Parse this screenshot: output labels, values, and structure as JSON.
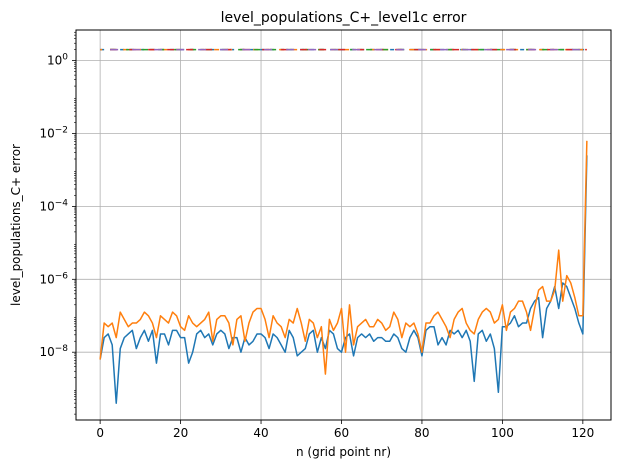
{
  "chart_data": {
    "type": "line",
    "title": "level_populations_C+_level1c error",
    "xlabel": "n (grid point nr)",
    "ylabel": "level_populations_C+ error",
    "xlim": [
      -6,
      127
    ],
    "ylim_log10": [
      -9.86,
      0.84
    ],
    "yscale": "log",
    "grid": true,
    "x_ticks": [
      0,
      20,
      40,
      60,
      80,
      100,
      120
    ],
    "y_ticks": [
      {
        "exp": -8,
        "label": "10−8"
      },
      {
        "exp": -6,
        "label": "10−6"
      },
      {
        "exp": -4,
        "label": "10−4"
      },
      {
        "exp": -2,
        "label": "10−2"
      },
      {
        "exp": 0,
        "label": "100"
      }
    ],
    "reference_level": 2.0,
    "reference_colors": [
      "#1f77b4",
      "#ff7f0e",
      "#2ca02c",
      "#d62728",
      "#9467bd"
    ],
    "series": [
      {
        "color": "#1f77b4",
        "values_log10": [
          -8.2,
          -7.6,
          -7.5,
          -7.8,
          -9.4,
          -7.9,
          -7.6,
          -7.5,
          -7.4,
          -7.9,
          -7.6,
          -7.4,
          -7.7,
          -7.4,
          -8.3,
          -7.5,
          -7.5,
          -7.8,
          -7.4,
          -7.4,
          -7.6,
          -7.6,
          -8.3,
          -8.0,
          -7.5,
          -7.4,
          -7.6,
          -7.5,
          -7.8,
          -7.5,
          -7.4,
          -7.5,
          -7.9,
          -7.6,
          -7.6,
          -8.0,
          -7.6,
          -7.8,
          -7.7,
          -7.5,
          -7.5,
          -7.6,
          -7.9,
          -7.5,
          -7.6,
          -7.8,
          -8.0,
          -7.4,
          -7.6,
          -8.1,
          -8.0,
          -7.9,
          -7.5,
          -7.4,
          -8.0,
          -7.6,
          -7.9,
          -7.4,
          -7.5,
          -7.9,
          -8.0,
          -7.6,
          -7.5,
          -8.1,
          -7.6,
          -7.5,
          -7.6,
          -7.5,
          -7.7,
          -7.6,
          -7.6,
          -7.7,
          -7.7,
          -7.5,
          -7.6,
          -7.9,
          -8.0,
          -7.6,
          -7.4,
          -7.6,
          -8.1,
          -7.4,
          -7.3,
          -7.3,
          -7.8,
          -7.6,
          -7.8,
          -7.4,
          -7.5,
          -7.4,
          -7.6,
          -7.4,
          -7.7,
          -8.8,
          -7.5,
          -7.4,
          -7.7,
          -7.5,
          -7.9,
          -9.1,
          -7.3,
          -7.3,
          -7.2,
          -7.0,
          -7.3,
          -7.2,
          -7.2,
          -6.8,
          -6.6,
          -6.5,
          -7.6,
          -6.8,
          -6.6,
          -6.2,
          -6.8,
          -6.1,
          -6.2,
          -6.5,
          -6.8,
          -7.2,
          -7.5,
          -2.6
        ]
      },
      {
        "color": "#ff7f0e",
        "values_log10": [
          -8.2,
          -7.2,
          -7.3,
          -7.2,
          -7.6,
          -6.9,
          -7.1,
          -7.3,
          -7.2,
          -7.2,
          -7.1,
          -6.9,
          -7.0,
          -7.2,
          -7.6,
          -7.0,
          -7.1,
          -7.2,
          -6.9,
          -7.0,
          -7.3,
          -7.4,
          -7.0,
          -7.2,
          -7.3,
          -7.2,
          -7.1,
          -6.9,
          -7.7,
          -7.1,
          -7.0,
          -7.0,
          -7.2,
          -7.8,
          -7.1,
          -7.0,
          -7.7,
          -7.2,
          -6.9,
          -6.8,
          -6.8,
          -7.1,
          -7.6,
          -7.0,
          -7.2,
          -7.3,
          -7.6,
          -7.1,
          -7.2,
          -6.8,
          -7.2,
          -7.7,
          -7.1,
          -7.2,
          -7.6,
          -7.3,
          -8.6,
          -7.1,
          -7.4,
          -7.2,
          -6.8,
          -8.0,
          -6.7,
          -7.8,
          -7.3,
          -7.2,
          -7.1,
          -7.3,
          -7.3,
          -7.1,
          -7.2,
          -7.4,
          -7.3,
          -6.9,
          -7.1,
          -7.6,
          -7.2,
          -7.3,
          -7.2,
          -7.5,
          -8.0,
          -7.2,
          -7.2,
          -7.0,
          -6.9,
          -7.1,
          -7.3,
          -7.6,
          -7.1,
          -6.9,
          -6.8,
          -7.2,
          -7.4,
          -7.5,
          -7.1,
          -6.9,
          -6.8,
          -6.9,
          -7.2,
          -7.1,
          -6.7,
          -7.4,
          -6.9,
          -6.8,
          -6.6,
          -6.6,
          -6.9,
          -7.4,
          -6.8,
          -6.3,
          -6.2,
          -6.6,
          -6.6,
          -6.3,
          -5.2,
          -6.6,
          -5.9,
          -6.1,
          -6.5,
          -7.0,
          -7.0,
          -2.2
        ]
      }
    ]
  }
}
